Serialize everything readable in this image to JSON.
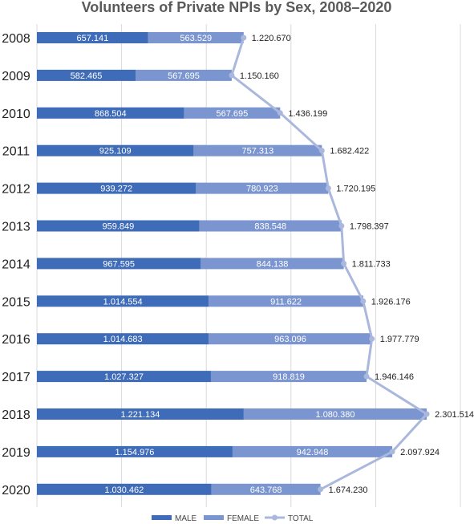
{
  "chart_data": {
    "type": "bar",
    "title": "Volunteers of Private NPIs by Sex, 2008–2020",
    "categories": [
      "2008",
      "2009",
      "2010",
      "2011",
      "2012",
      "2013",
      "2014",
      "2015",
      "2016",
      "2017",
      "2018",
      "2019",
      "2020"
    ],
    "series": [
      {
        "name": "MALE",
        "color": "#3f6cb8",
        "values": [
          657141,
          582465,
          868504,
          925109,
          939272,
          959849,
          967595,
          1014554,
          1014683,
          1027327,
          1221134,
          1154976,
          1030462
        ],
        "labels": [
          "657.141",
          "582.465",
          "868.504",
          "925.109",
          "939.272",
          "959.849",
          "967.595",
          "1.014.554",
          "1.014.683",
          "1.027.327",
          "1.221.134",
          "1.154.976",
          "1.030.462"
        ]
      },
      {
        "name": "FEMALE",
        "color": "#7a95cf",
        "values": [
          563529,
          567695,
          567695,
          757313,
          780923,
          838548,
          844138,
          911622,
          963096,
          918819,
          1080380,
          942948,
          643768
        ],
        "labels": [
          "563.529",
          "567.695",
          "567.695",
          "757.313",
          "780.923",
          "838.548",
          "844.138",
          "911.622",
          "963.096",
          "918.819",
          "1.080.380",
          "942.948",
          "643.768"
        ]
      },
      {
        "name": "TOTAL",
        "color": "#a9b8dc",
        "values": [
          1220670,
          1150160,
          1436199,
          1682422,
          1720195,
          1798397,
          1811733,
          1926176,
          1977779,
          1946146,
          2301514,
          2097924,
          1674230
        ],
        "labels": [
          "1.220.670",
          "1.150.160",
          "1.436.199",
          "1.682.422",
          "1.720.195",
          "1.798.397",
          "1.811.733",
          "1.926.176",
          "1.977.779",
          "1.946.146",
          "2.301.514",
          "2.097.924",
          "1.674.230"
        ]
      }
    ],
    "orientation": "horizontal",
    "stacked": true,
    "xlim": [
      0,
      2500000
    ],
    "grid": true,
    "legend": "bottom"
  }
}
